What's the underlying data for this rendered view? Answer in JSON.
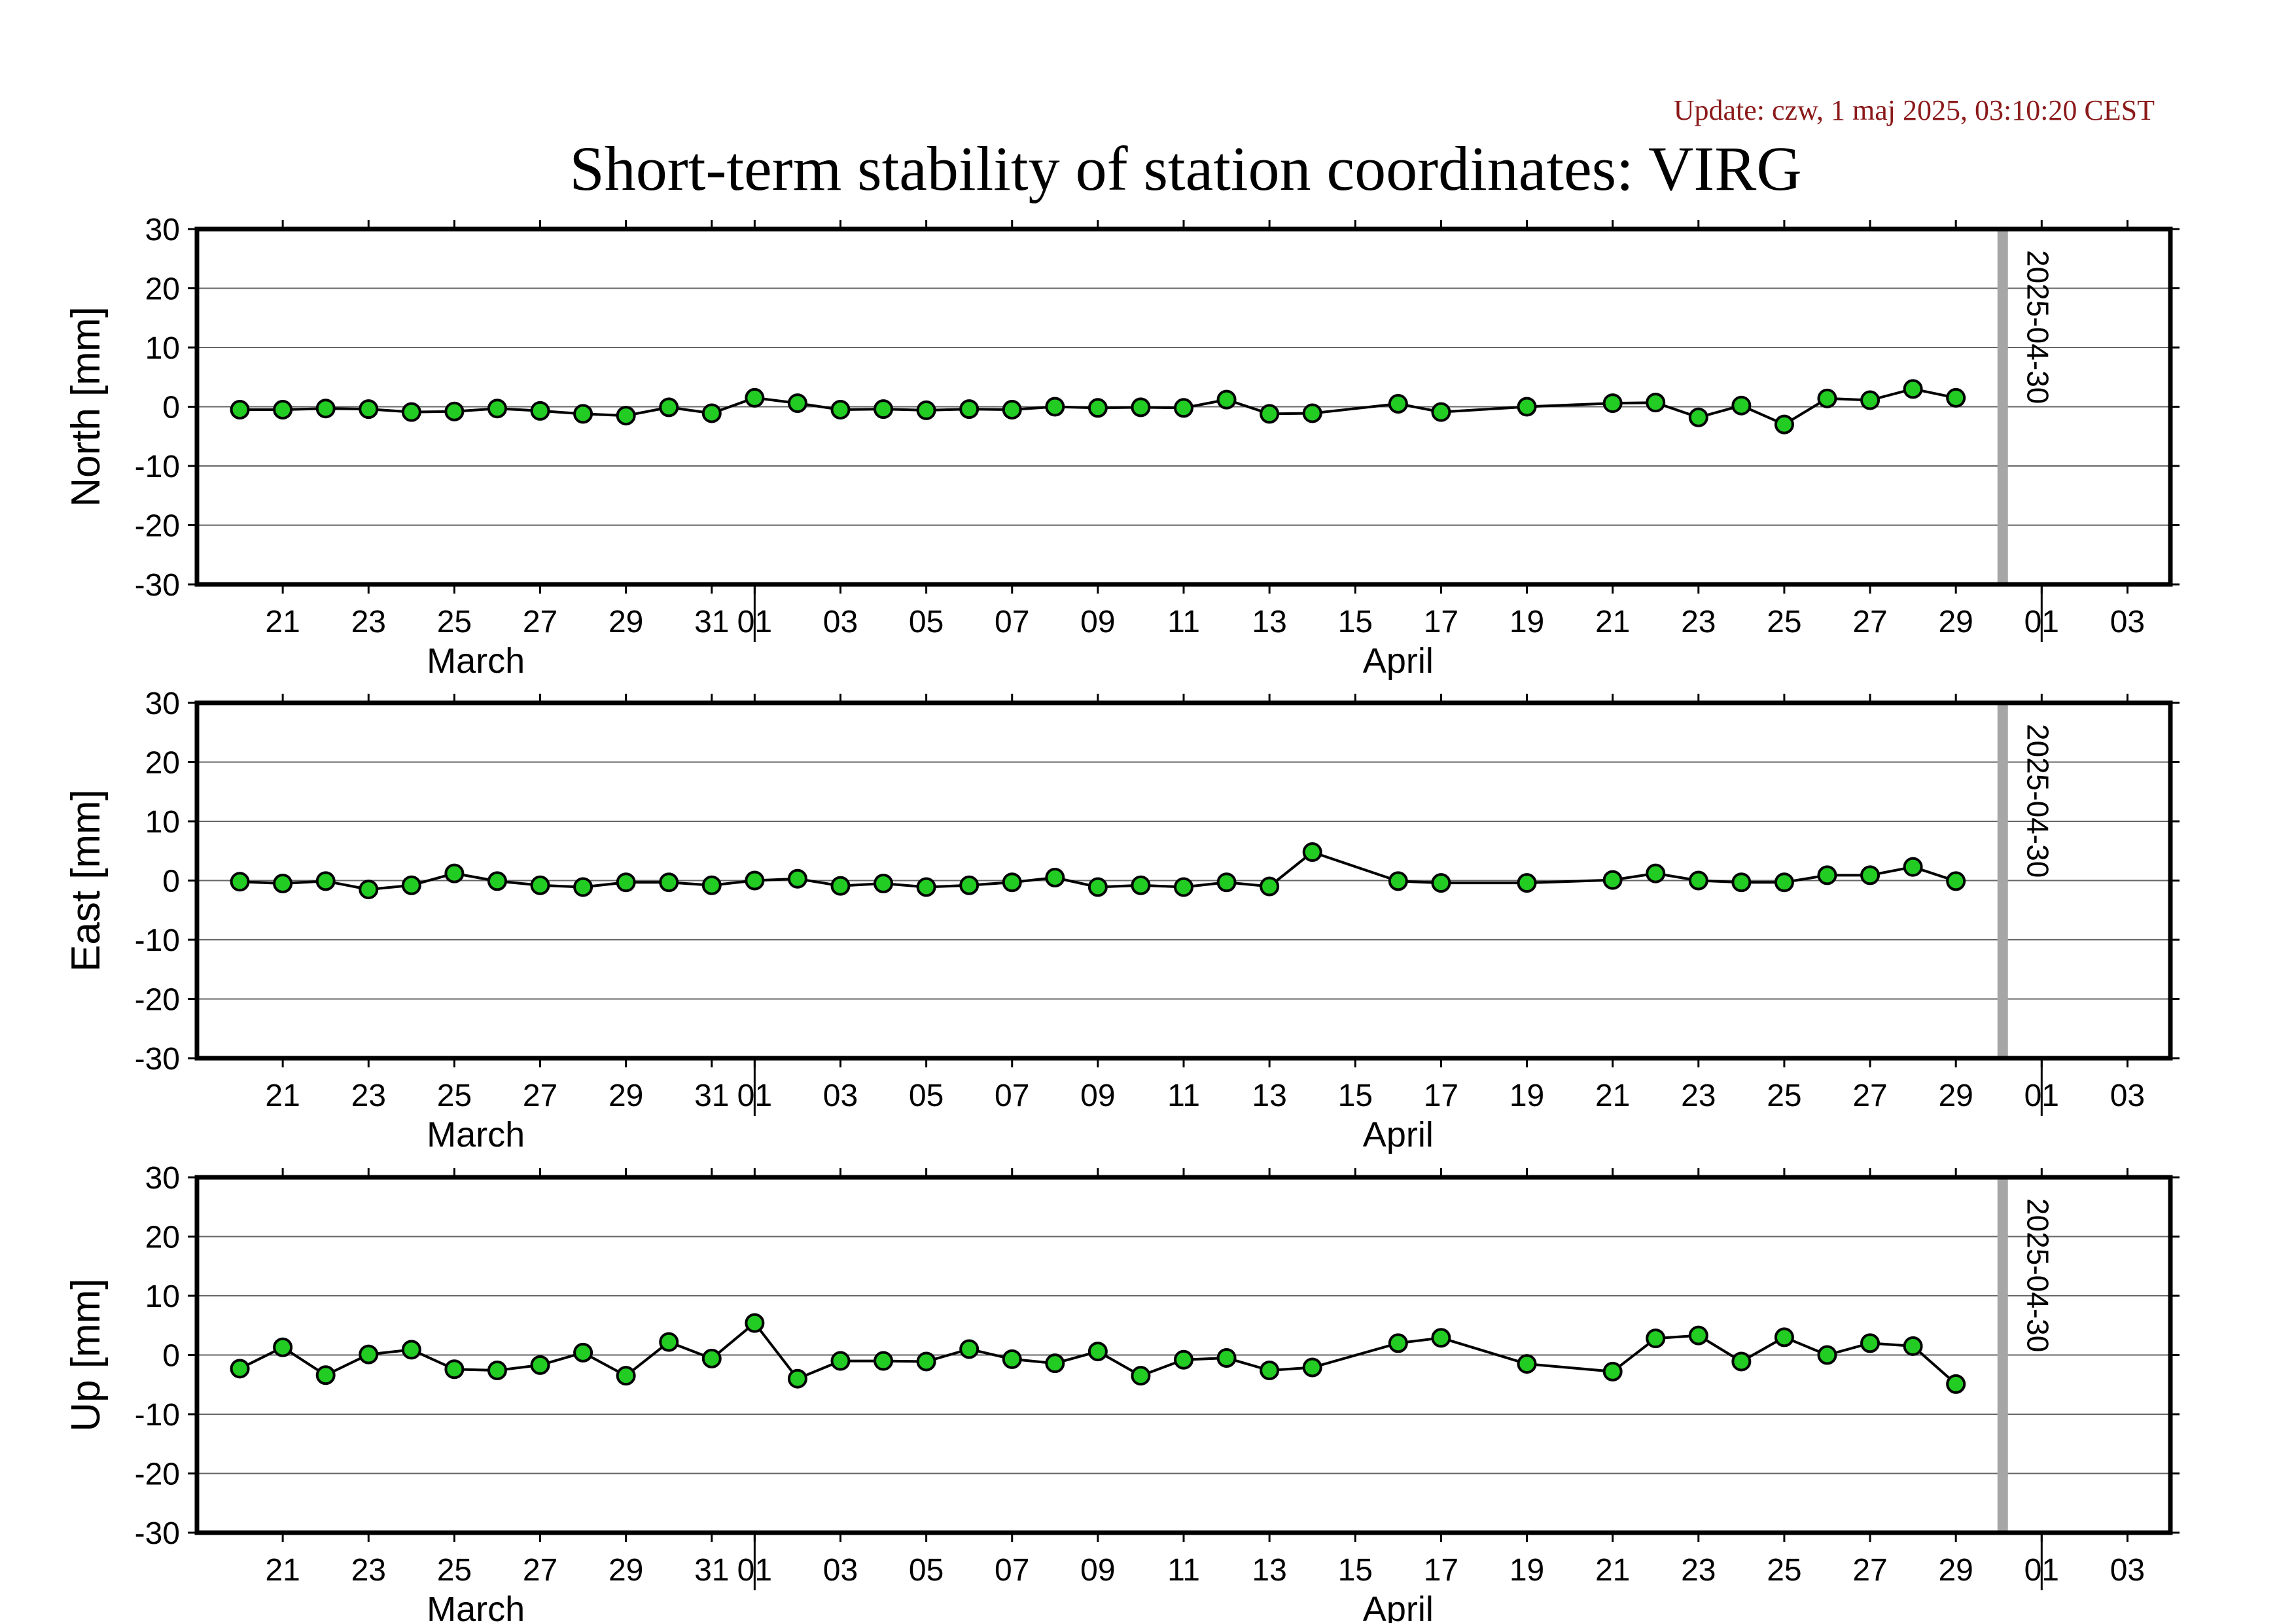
{
  "update_text": "Update: czw, 1 maj 2025, 03:10:20 CEST",
  "colors": {
    "update": "#8b1a1a",
    "marker_fill": "#22cc22",
    "marker_stroke": "#000000",
    "line": "#000000",
    "grid": "#666666",
    "date_marker": "#a6a6a6"
  },
  "chart_data": {
    "type": "line",
    "title": "Short-term stability of station coordinates: VIRG",
    "x_axis": {
      "range": [
        "2025-03-19",
        "2025-05-04"
      ],
      "tick_labels": [
        "21",
        "23",
        "25",
        "27",
        "29",
        "31",
        "01",
        "03",
        "05",
        "07",
        "09",
        "11",
        "13",
        "15",
        "17",
        "19",
        "21",
        "23",
        "25",
        "27",
        "29",
        "01",
        "03"
      ],
      "month_labels": [
        "March",
        "April"
      ]
    },
    "ylim": [
      -30,
      30
    ],
    "yticks": [
      "30",
      "20",
      "10",
      "0",
      "-10",
      "-20",
      "-30"
    ],
    "grid": "horizontal",
    "date_marker": "2025-04-30",
    "panels": [
      {
        "ylabel": "North [mm]",
        "points": [
          [
            "2025-03-20",
            -0.5
          ],
          [
            "2025-03-21",
            -0.5
          ],
          [
            "2025-03-22",
            -0.3
          ],
          [
            "2025-03-23",
            -0.4
          ],
          [
            "2025-03-24",
            -0.9
          ],
          [
            "2025-03-25",
            -0.8
          ],
          [
            "2025-03-26",
            -0.3
          ],
          [
            "2025-03-27",
            -0.7
          ],
          [
            "2025-03-28",
            -1.2
          ],
          [
            "2025-03-29",
            -1.5
          ],
          [
            "2025-03-30",
            -0.1
          ],
          [
            "2025-03-31",
            -1.1
          ],
          [
            "2025-04-01",
            1.5
          ],
          [
            "2025-04-02",
            0.6
          ],
          [
            "2025-04-03",
            -0.5
          ],
          [
            "2025-04-04",
            -0.4
          ],
          [
            "2025-04-05",
            -0.6
          ],
          [
            "2025-04-06",
            -0.4
          ],
          [
            "2025-04-07",
            -0.5
          ],
          [
            "2025-04-08",
            0.0
          ],
          [
            "2025-04-09",
            -0.2
          ],
          [
            "2025-04-10",
            -0.1
          ],
          [
            "2025-04-11",
            -0.2
          ],
          [
            "2025-04-12",
            1.2
          ],
          [
            "2025-04-13",
            -1.2
          ],
          [
            "2025-04-14",
            -1.1
          ],
          [
            "2025-04-16",
            0.5
          ],
          [
            "2025-04-17",
            -0.9
          ],
          [
            "2025-04-19",
            0.0
          ],
          [
            "2025-04-21",
            0.6
          ],
          [
            "2025-04-22",
            0.7
          ],
          [
            "2025-04-23",
            -1.8
          ],
          [
            "2025-04-24",
            0.2
          ],
          [
            "2025-04-25",
            -3.0
          ],
          [
            "2025-04-26",
            1.4
          ],
          [
            "2025-04-27",
            1.1
          ],
          [
            "2025-04-28",
            3.0
          ],
          [
            "2025-04-29",
            1.5
          ]
        ]
      },
      {
        "ylabel": "East [mm]",
        "points": [
          [
            "2025-03-20",
            -0.2
          ],
          [
            "2025-03-21",
            -0.5
          ],
          [
            "2025-03-22",
            -0.1
          ],
          [
            "2025-03-23",
            -1.5
          ],
          [
            "2025-03-24",
            -0.8
          ],
          [
            "2025-03-25",
            1.2
          ],
          [
            "2025-03-26",
            -0.1
          ],
          [
            "2025-03-27",
            -0.8
          ],
          [
            "2025-03-28",
            -1.1
          ],
          [
            "2025-03-29",
            -0.3
          ],
          [
            "2025-03-30",
            -0.3
          ],
          [
            "2025-03-31",
            -0.8
          ],
          [
            "2025-04-01",
            0.0
          ],
          [
            "2025-04-02",
            0.3
          ],
          [
            "2025-04-03",
            -0.9
          ],
          [
            "2025-04-04",
            -0.5
          ],
          [
            "2025-04-05",
            -1.1
          ],
          [
            "2025-04-06",
            -0.8
          ],
          [
            "2025-04-07",
            -0.3
          ],
          [
            "2025-04-08",
            0.5
          ],
          [
            "2025-04-09",
            -1.1
          ],
          [
            "2025-04-10",
            -0.8
          ],
          [
            "2025-04-11",
            -1.1
          ],
          [
            "2025-04-12",
            -0.3
          ],
          [
            "2025-04-13",
            -1.0
          ],
          [
            "2025-04-14",
            4.8
          ],
          [
            "2025-04-16",
            -0.1
          ],
          [
            "2025-04-17",
            -0.4
          ],
          [
            "2025-04-19",
            -0.4
          ],
          [
            "2025-04-21",
            0.1
          ],
          [
            "2025-04-22",
            1.2
          ],
          [
            "2025-04-23",
            0.0
          ],
          [
            "2025-04-24",
            -0.3
          ],
          [
            "2025-04-25",
            -0.3
          ],
          [
            "2025-04-26",
            0.9
          ],
          [
            "2025-04-27",
            0.9
          ],
          [
            "2025-04-28",
            2.3
          ],
          [
            "2025-04-29",
            -0.1
          ]
        ]
      },
      {
        "ylabel": "Up [mm]",
        "points": [
          [
            "2025-03-20",
            -2.3
          ],
          [
            "2025-03-21",
            1.3
          ],
          [
            "2025-03-22",
            -3.4
          ],
          [
            "2025-03-23",
            0.1
          ],
          [
            "2025-03-24",
            0.9
          ],
          [
            "2025-03-25",
            -2.4
          ],
          [
            "2025-03-26",
            -2.6
          ],
          [
            "2025-03-27",
            -1.7
          ],
          [
            "2025-03-28",
            0.4
          ],
          [
            "2025-03-29",
            -3.5
          ],
          [
            "2025-03-30",
            2.2
          ],
          [
            "2025-03-31",
            -0.6
          ],
          [
            "2025-04-01",
            5.4
          ],
          [
            "2025-04-02",
            -4.0
          ],
          [
            "2025-04-03",
            -1.0
          ],
          [
            "2025-04-04",
            -1.0
          ],
          [
            "2025-04-05",
            -1.1
          ],
          [
            "2025-04-06",
            1.0
          ],
          [
            "2025-04-07",
            -0.7
          ],
          [
            "2025-04-08",
            -1.4
          ],
          [
            "2025-04-09",
            0.6
          ],
          [
            "2025-04-10",
            -3.5
          ],
          [
            "2025-04-11",
            -0.8
          ],
          [
            "2025-04-12",
            -0.5
          ],
          [
            "2025-04-13",
            -2.6
          ],
          [
            "2025-04-14",
            -2.1
          ],
          [
            "2025-04-16",
            2.0
          ],
          [
            "2025-04-17",
            2.9
          ],
          [
            "2025-04-19",
            -1.5
          ],
          [
            "2025-04-21",
            -2.8
          ],
          [
            "2025-04-22",
            2.8
          ],
          [
            "2025-04-23",
            3.3
          ],
          [
            "2025-04-24",
            -1.1
          ],
          [
            "2025-04-25",
            3.0
          ],
          [
            "2025-04-26",
            0.0
          ],
          [
            "2025-04-27",
            2.0
          ],
          [
            "2025-04-28",
            1.5
          ],
          [
            "2025-04-29",
            -4.9
          ]
        ]
      }
    ]
  }
}
